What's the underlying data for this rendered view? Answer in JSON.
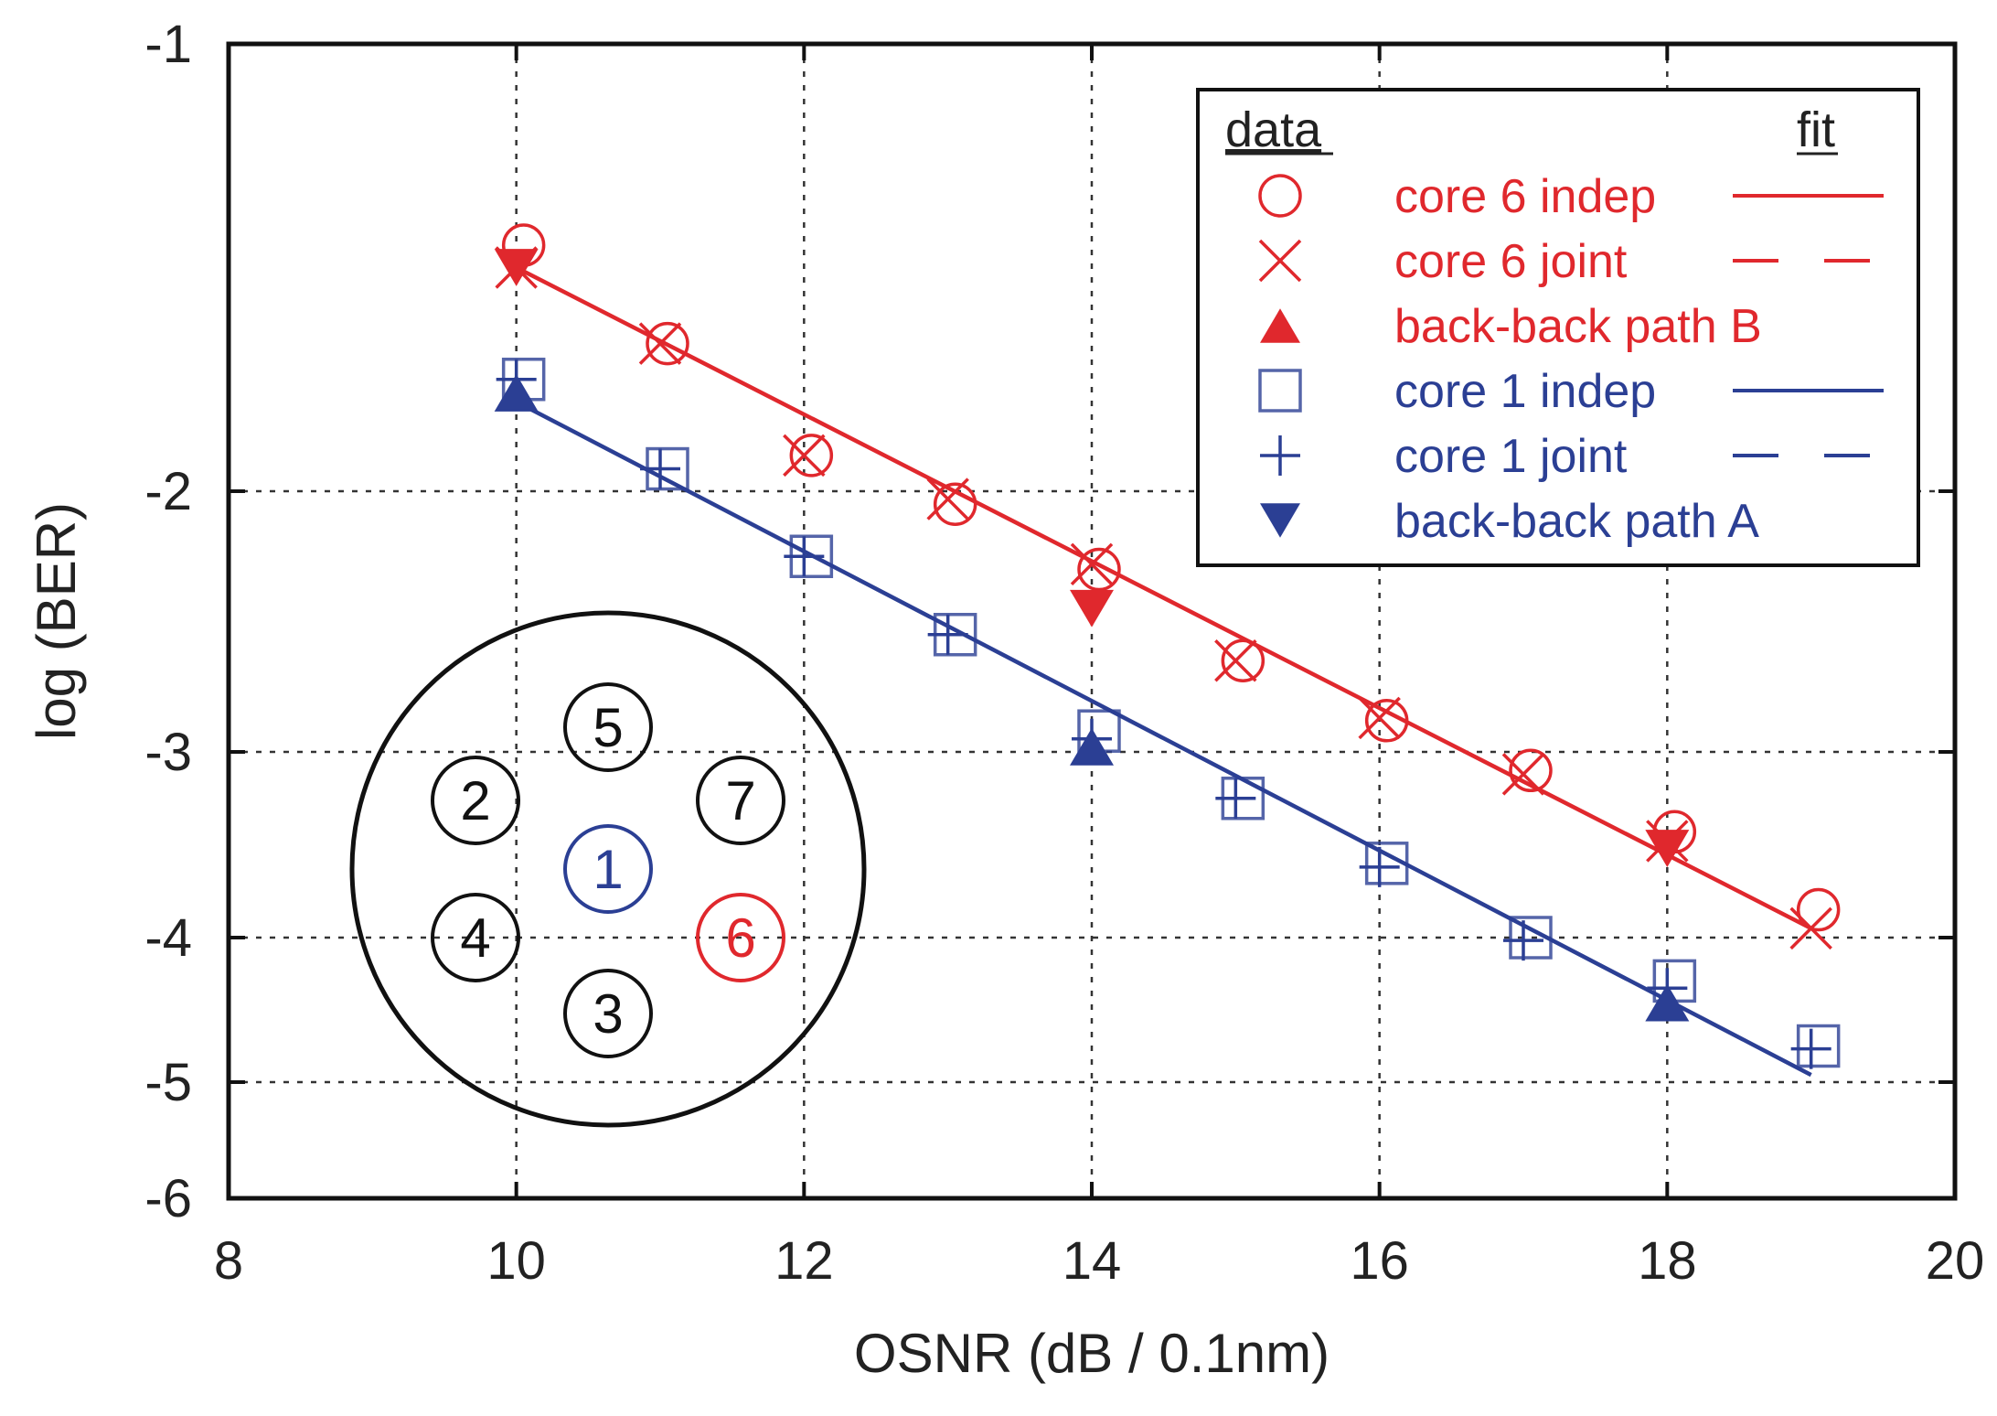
{
  "chart_data": {
    "type": "scatter",
    "xlabel": "OSNR (dB / 0.1nm)",
    "ylabel": "log (BER)",
    "xlim": [
      8,
      20
    ],
    "x_ticks": [
      8,
      10,
      12,
      14,
      16,
      18,
      20
    ],
    "y_ticks": [
      {
        "label": "-1",
        "value": -1
      },
      {
        "label": "-2",
        "value": -2
      },
      {
        "label": "-3",
        "value": -3
      },
      {
        "label": "-4",
        "value": -4
      },
      {
        "label": "-5",
        "value": -5
      },
      {
        "label": "-6",
        "value": -6
      }
    ],
    "grid": true,
    "legend": {
      "placement": "top-right",
      "data_header": "data",
      "fit_header": "fit",
      "entries": [
        {
          "label": "core 6 indep",
          "marker": "circle",
          "color": "#e0282d",
          "line": "solid"
        },
        {
          "label": "core 6 joint",
          "marker": "x",
          "color": "#e0282d",
          "line": "dashed"
        },
        {
          "label": "back-back path B",
          "marker": "triangle-up",
          "color": "#e0282d",
          "line": "none"
        },
        {
          "label": "core 1 indep",
          "marker": "square",
          "color": "#2b3f94",
          "line": "solid"
        },
        {
          "label": "core 1 joint",
          "marker": "plus",
          "color": "#2b3f94",
          "line": "dashed"
        },
        {
          "label": "back-back path A",
          "marker": "triangle-down",
          "color": "#2b3f94",
          "line": "none"
        }
      ]
    },
    "series": [
      {
        "name": "core 6 indep",
        "color": "#e0282d",
        "marker": "circle",
        "x": [
          10,
          11,
          12,
          13,
          14,
          15,
          16,
          17,
          18,
          19
        ],
        "y": [
          -1.45,
          -1.67,
          -1.92,
          -2.05,
          -2.3,
          -2.65,
          -2.88,
          -3.1,
          -3.43,
          -3.85
        ]
      },
      {
        "name": "core 6 joint",
        "color": "#e0282d",
        "marker": "x",
        "x": [
          10,
          11,
          12,
          13,
          14,
          15,
          16,
          17,
          18,
          19
        ],
        "y": [
          -1.5,
          -1.67,
          -1.92,
          -2.03,
          -2.28,
          -2.65,
          -2.87,
          -3.12,
          -3.48,
          -3.95
        ]
      },
      {
        "name": "back-back path B",
        "color": "#e0282d",
        "marker": "filled-triangle",
        "x": [
          10,
          14,
          18
        ],
        "y": [
          -1.5,
          -2.45,
          -3.52
        ]
      },
      {
        "name": "core 1 indep",
        "color": "#2b3f94",
        "marker": "square",
        "x": [
          10,
          11,
          12,
          13,
          14,
          15,
          16,
          17,
          18,
          19
        ],
        "y": [
          -1.75,
          -1.95,
          -2.25,
          -2.55,
          -2.92,
          -3.25,
          -3.6,
          -4.0,
          -4.3,
          -4.75
        ]
      },
      {
        "name": "core 1 joint",
        "color": "#2b3f94",
        "marker": "plus",
        "x": [
          10,
          11,
          12,
          13,
          14,
          15,
          16,
          17,
          18,
          19
        ],
        "y": [
          -1.75,
          -1.95,
          -2.25,
          -2.55,
          -2.95,
          -3.25,
          -3.62,
          -4.02,
          -4.35,
          -4.77
        ]
      },
      {
        "name": "back-back path A",
        "color": "#2b3f94",
        "marker": "filled-triangle",
        "x": [
          10,
          14,
          18
        ],
        "y": [
          -1.78,
          -2.98,
          -4.45
        ]
      }
    ],
    "fits": [
      {
        "name": "core 6 fit",
        "color": "#e0282d",
        "x": [
          10,
          19
        ],
        "y": [
          -1.5,
          -3.95
        ]
      },
      {
        "name": "core 1 fit",
        "color": "#2b3f94",
        "x": [
          10,
          19
        ],
        "y": [
          -1.8,
          -4.95
        ]
      }
    ],
    "inset": {
      "description_label": "fiber cores",
      "cores": [
        {
          "label": "5",
          "color": "#111111"
        },
        {
          "label": "2",
          "color": "#111111"
        },
        {
          "label": "7",
          "color": "#111111"
        },
        {
          "label": "1",
          "color": "#2b3f94"
        },
        {
          "label": "4",
          "color": "#111111"
        },
        {
          "label": "6",
          "color": "#e0282d"
        },
        {
          "label": "3",
          "color": "#111111"
        }
      ]
    }
  }
}
